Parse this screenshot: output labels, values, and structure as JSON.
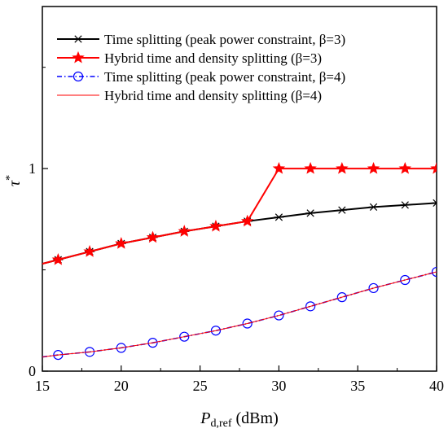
{
  "chart_data": {
    "type": "line",
    "xlabel_main": "P",
    "xlabel_sub": "d,ref",
    "xlabel_unit": " (dBm)",
    "ylabel_main": "τ",
    "ylabel_sup": "*",
    "xlim": [
      15,
      40
    ],
    "ylim": [
      0,
      1.8
    ],
    "x_ticks": [
      15,
      20,
      25,
      30,
      35,
      40
    ],
    "x_tick_labels": [
      "15",
      "20",
      "25",
      "30",
      "35",
      "40"
    ],
    "y_ticks": [
      0,
      1
    ],
    "y_tick_labels": [
      "0",
      "1"
    ],
    "grid": false,
    "legend_position": "top-right",
    "x": [
      15,
      16,
      18,
      20,
      22,
      24,
      26,
      28,
      30,
      32,
      34,
      36,
      38,
      40
    ],
    "series": [
      {
        "name": "Time splitting (peak power constraint, β=3)",
        "color": "#000000",
        "marker": "asterisk",
        "values": [
          0.53,
          0.55,
          0.59,
          0.63,
          0.66,
          0.69,
          0.715,
          0.74,
          0.76,
          0.78,
          0.795,
          0.81,
          0.82,
          0.83
        ]
      },
      {
        "name": "Hybrid time and density splitting (β=3)",
        "color": "#ff0000",
        "marker": "star",
        "values": [
          0.53,
          0.55,
          0.59,
          0.63,
          0.66,
          0.69,
          0.715,
          0.74,
          1.0,
          1.0,
          1.0,
          1.0,
          1.0,
          1.0
        ]
      },
      {
        "name": "Time splitting (peak power constraint, β=4)",
        "color": "#0000ff",
        "marker": "circle",
        "values": [
          0.07,
          0.08,
          0.095,
          0.115,
          0.14,
          0.17,
          0.2,
          0.235,
          0.275,
          0.32,
          0.365,
          0.41,
          0.45,
          0.49
        ]
      },
      {
        "name": "Hybrid time and density splitting (β=4)",
        "color": "#ff0000",
        "marker": "none",
        "values": [
          0.07,
          0.08,
          0.095,
          0.115,
          0.14,
          0.17,
          0.2,
          0.235,
          0.275,
          0.32,
          0.365,
          0.41,
          0.45,
          0.49
        ]
      }
    ]
  }
}
